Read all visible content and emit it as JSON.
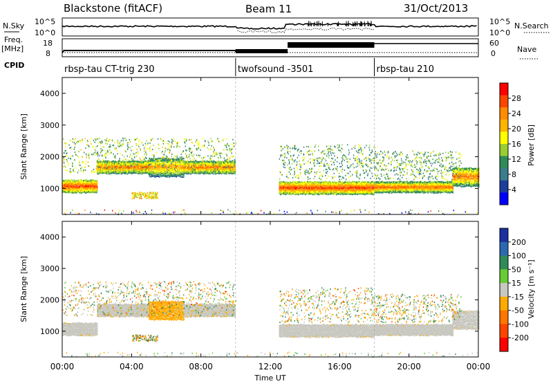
{
  "header": {
    "station": "Blackstone (fitACF)",
    "beam": "Beam 11",
    "date": "31/Oct/2013"
  },
  "top_panels": {
    "nsky_label": "N.Sky",
    "nsearch_label": "N.Search",
    "nsky_ticks": [
      "10^5",
      "10^0"
    ],
    "nsearch_ticks": [
      "10^5",
      "10^0"
    ],
    "freq_label": "Freq.",
    "freq_unit": "[MHz]",
    "freq_ticks": [
      "18",
      "8"
    ],
    "nave_label": "Nave",
    "nave_ticks": [
      "60",
      "0"
    ]
  },
  "cpid": {
    "label": "CPID",
    "segments": [
      {
        "start": 0,
        "end": 10,
        "name": "rbsp-tau CT-trig 230"
      },
      {
        "start": 10,
        "end": 18,
        "name": "twofsound -3501"
      },
      {
        "start": 18,
        "end": 24,
        "name": "rbsp-tau 210"
      }
    ]
  },
  "axes": {
    "x_ticks": [
      "00:00",
      "04:00",
      "08:00",
      "12:00",
      "16:00",
      "20:00",
      "00:00"
    ],
    "x_label": "Time UT",
    "y_label": "Slant Range [km]",
    "y_ticks": [
      1000,
      2000,
      3000,
      4000
    ]
  },
  "power_scale": {
    "label": "Power [dB]",
    "ticks": [
      "28",
      "24",
      "20",
      "16",
      "12",
      "8",
      "4"
    ],
    "colors": [
      "#ff0000",
      "#ff4500",
      "#ff8c00",
      "#ffb400",
      "#ffff00",
      "#9acd32",
      "#2e8b57",
      "#3a7d8c",
      "#1c3d9e",
      "#0000ff"
    ]
  },
  "velocity_scale": {
    "label": "Velocity [m s⁻¹]",
    "ticks": [
      "200",
      "100",
      "50",
      "15",
      "-15",
      "-50",
      "-100",
      "-200"
    ],
    "colors": [
      "#1a2fa0",
      "#2b68b0",
      "#2e8b57",
      "#66cc33",
      "#c8c8c0",
      "#ffaa00",
      "#ff7700",
      "#ff4400",
      "#ff0000"
    ]
  },
  "chart_data": {
    "type": "heatmap",
    "x_range_hours": [
      0,
      24
    ],
    "y_range_km": [
      180,
      4500
    ],
    "panels": [
      "Power [dB]",
      "Velocity [m s⁻¹]"
    ],
    "echo_bands": [
      {
        "from_h": 0.0,
        "to_h": 2.0,
        "range_km": [
          900,
          1300
        ],
        "power_db": 28,
        "velocity": -15
      },
      {
        "from_h": 2.0,
        "to_h": 5.0,
        "range_km": [
          1500,
          1900
        ],
        "power_db": 26,
        "velocity": -15
      },
      {
        "from_h": 5.0,
        "to_h": 7.0,
        "range_km": [
          1400,
          2000
        ],
        "power_db": 24,
        "velocity": -50
      },
      {
        "from_h": 7.0,
        "to_h": 10.0,
        "range_km": [
          1500,
          1900
        ],
        "power_db": 26,
        "velocity": -15
      },
      {
        "from_h": 12.5,
        "to_h": 18.0,
        "range_km": [
          850,
          1250
        ],
        "power_db": 28,
        "velocity": -15
      },
      {
        "from_h": 18.0,
        "to_h": 22.5,
        "range_km": [
          900,
          1250
        ],
        "power_db": 26,
        "velocity": -15
      },
      {
        "from_h": 22.5,
        "to_h": 24.0,
        "range_km": [
          1100,
          1700
        ],
        "power_db": 26,
        "velocity": -15
      }
    ],
    "scatter_bands": [
      {
        "from_h": 0.0,
        "to_h": 10.0,
        "range_km": [
          1500,
          2600
        ],
        "power_db": 14
      },
      {
        "from_h": 4.0,
        "to_h": 5.5,
        "range_km": [
          700,
          900
        ],
        "power_db": 18
      },
      {
        "from_h": 12.5,
        "to_h": 18.0,
        "range_km": [
          1300,
          2400
        ],
        "power_db": 12
      },
      {
        "from_h": 18.0,
        "to_h": 23.0,
        "range_km": [
          1300,
          2200
        ],
        "power_db": 12
      }
    ]
  }
}
